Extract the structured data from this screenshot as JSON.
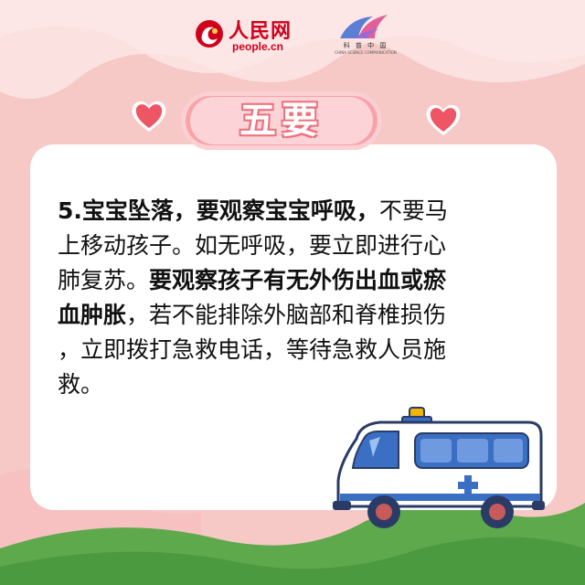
{
  "header": {
    "logo_cn": "人民网",
    "logo_en": "people.cn",
    "partner_text": "科 普 中 国",
    "partner_sub": "CHINA SCIENCE COMMUNICATION"
  },
  "title": "五要",
  "body": {
    "lines": [
      [
        {
          "text": "5.宝宝坠落，要观察宝宝呼吸，",
          "bold": true
        },
        {
          "text": "不要马",
          "bold": false
        }
      ],
      [
        {
          "text": "上移动孩子。如无呼吸，要立即进行心",
          "bold": false
        }
      ],
      [
        {
          "text": "肺复苏。",
          "bold": false
        },
        {
          "text": "要观察孩子有无外伤出血或瘀",
          "bold": true
        }
      ],
      [
        {
          "text": "血肿胀",
          "bold": true
        },
        {
          "text": "，若不能排除外脑部和脊椎损伤",
          "bold": false
        }
      ],
      [
        {
          "text": "，立即拨打急救电话，等待急救人员施",
          "bold": false
        }
      ],
      [
        {
          "text": "救。",
          "bold": false
        }
      ]
    ]
  },
  "colors": {
    "background": "#f6c9c7",
    "title_pill": "#f7a3a8",
    "heart": "#ee5565",
    "hills": "#5ea94c",
    "ambulance_blue": "#3a6fc4"
  },
  "icons": [
    "heart-icon",
    "ambulance-icon",
    "people-logo-icon",
    "kepu-logo-icon"
  ]
}
